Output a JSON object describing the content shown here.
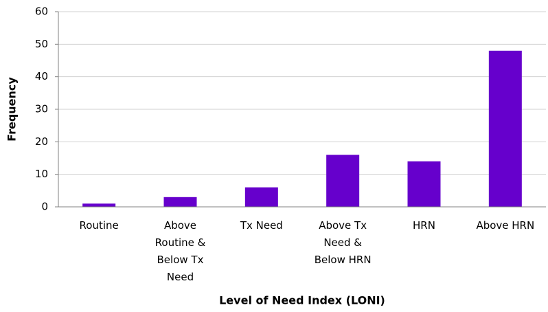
{
  "chart_data": {
    "type": "bar",
    "categories": [
      "Routine",
      "Above Routine & Below Tx Need",
      "Tx Need",
      "Above Tx Need & Below HRN",
      "HRN",
      "Above HRN"
    ],
    "values": [
      1,
      3,
      6,
      16,
      14,
      48
    ],
    "color": "#6600cc",
    "x_label": "Level of Need Index (LONI)",
    "y_label": "Frequency",
    "ylim": [
      0,
      60
    ],
    "yticks": [
      0,
      10,
      20,
      30,
      40,
      50,
      60
    ],
    "grid": true
  }
}
